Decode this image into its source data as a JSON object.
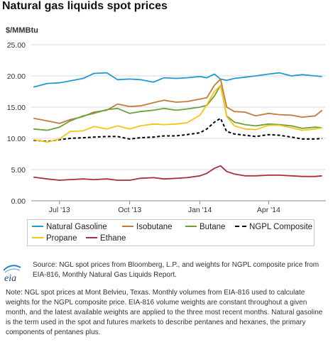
{
  "title": "Natural gas liquids spot prices",
  "unit_label": "$/MMBtu",
  "logo_text": "eia",
  "source": "Source: NGL spot prices from Bloomberg, L.P., and weights for NGPL composite price from EIA-816, Monthly Natural Gas Liquids Report.",
  "note": "Note: NGL spot prices at Mont Belvieu, Texas. Monthly volumes from EIA-816 used to calculate weights for the NGPL composite price. EIA-816 volume weights are constant throughout a given month, and the latest available weights are applied to the three most recent months. Natural gasoline is the term used in the spot and futures markets to describe pentanes and hexanes, the primary components of pentanes plus.",
  "chart_data": {
    "type": "line",
    "ylim": [
      0,
      25
    ],
    "yticks": [
      "25.00",
      "20.00",
      "15.00",
      "10.00",
      "5.00",
      "0.00"
    ],
    "ytick_values": [
      25,
      20,
      15,
      10,
      5,
      0
    ],
    "xlim": [
      "2013-05-25",
      "2014-06-15"
    ],
    "xticks": [
      {
        "label": "Jul '13",
        "date": "2013-07-01"
      },
      {
        "label": "Oct '13",
        "date": "2013-10-01"
      },
      {
        "label": "Jan '14",
        "date": "2014-01-01"
      },
      {
        "label": "Apr '14",
        "date": "2014-04-01"
      }
    ],
    "grid": "horizontal",
    "legend_position": "bottom",
    "x": [
      "2013-05-28",
      "2013-06-15",
      "2013-07-01",
      "2013-07-15",
      "2013-08-01",
      "2013-08-15",
      "2013-09-01",
      "2013-09-15",
      "2013-10-01",
      "2013-10-15",
      "2013-11-01",
      "2013-11-15",
      "2013-12-01",
      "2013-12-15",
      "2014-01-01",
      "2014-01-10",
      "2014-01-20",
      "2014-01-28",
      "2014-02-05",
      "2014-02-15",
      "2014-03-01",
      "2014-03-15",
      "2014-04-01",
      "2014-04-15",
      "2014-05-01",
      "2014-05-15",
      "2014-06-01",
      "2014-06-10"
    ],
    "series": [
      {
        "name": "Natural Gasoline",
        "color": "#1e9ad6",
        "dash": "",
        "values": [
          18.2,
          18.8,
          18.9,
          19.2,
          19.6,
          20.4,
          20.5,
          19.4,
          19.5,
          19.4,
          19.0,
          19.7,
          19.6,
          19.7,
          19.9,
          19.7,
          20.3,
          19.5,
          19.3,
          19.6,
          19.8,
          20.0,
          20.3,
          20.5,
          20.0,
          20.2,
          20.0,
          19.9
        ]
      },
      {
        "name": "Isobutane",
        "color": "#c27a3e",
        "dash": "",
        "values": [
          13.2,
          12.8,
          12.4,
          13.0,
          13.5,
          14.2,
          14.5,
          15.5,
          15.1,
          15.2,
          15.7,
          16.1,
          15.8,
          15.9,
          16.3,
          16.5,
          18.5,
          19.5,
          15.0,
          14.3,
          14.2,
          13.6,
          14.0,
          13.8,
          13.7,
          13.4,
          13.6,
          14.5
        ]
      },
      {
        "name": "Butane",
        "color": "#6aa13a",
        "dash": "",
        "values": [
          11.5,
          11.3,
          11.8,
          12.8,
          13.6,
          14.0,
          14.6,
          14.8,
          14.0,
          14.3,
          14.5,
          14.8,
          14.5,
          14.7,
          15.0,
          15.3,
          16.8,
          18.5,
          13.6,
          12.6,
          12.2,
          12.0,
          12.3,
          12.2,
          12.0,
          11.6,
          11.8,
          11.7
        ]
      },
      {
        "name": "NGPL Composite",
        "color": "#000000",
        "dash": "4,3",
        "values": [
          9.7,
          9.5,
          9.8,
          10.0,
          10.1,
          10.2,
          10.3,
          10.3,
          9.9,
          10.1,
          10.2,
          10.4,
          10.4,
          10.6,
          10.9,
          11.5,
          12.6,
          13.2,
          11.1,
          10.7,
          10.5,
          10.3,
          10.6,
          10.5,
          10.2,
          9.9,
          9.9,
          10.0
        ]
      },
      {
        "name": "Propane",
        "color": "#f5c518",
        "dash": "",
        "values": [
          9.8,
          9.4,
          9.9,
          11.1,
          11.2,
          11.9,
          11.5,
          12.0,
          11.5,
          12.0,
          12.3,
          12.2,
          12.3,
          12.5,
          13.7,
          15.4,
          17.5,
          18.5,
          13.5,
          12.0,
          11.5,
          11.4,
          12.1,
          12.1,
          11.7,
          11.3,
          11.5,
          11.7
        ]
      },
      {
        "name": "Ethane",
        "color": "#a8303e",
        "dash": "",
        "values": [
          3.8,
          3.5,
          3.3,
          3.4,
          3.5,
          3.4,
          3.5,
          3.3,
          3.3,
          3.6,
          3.7,
          3.5,
          3.6,
          3.7,
          4.0,
          4.4,
          5.2,
          5.6,
          4.7,
          4.3,
          4.0,
          4.0,
          4.1,
          4.1,
          4.0,
          3.9,
          3.9,
          4.0
        ]
      }
    ]
  }
}
